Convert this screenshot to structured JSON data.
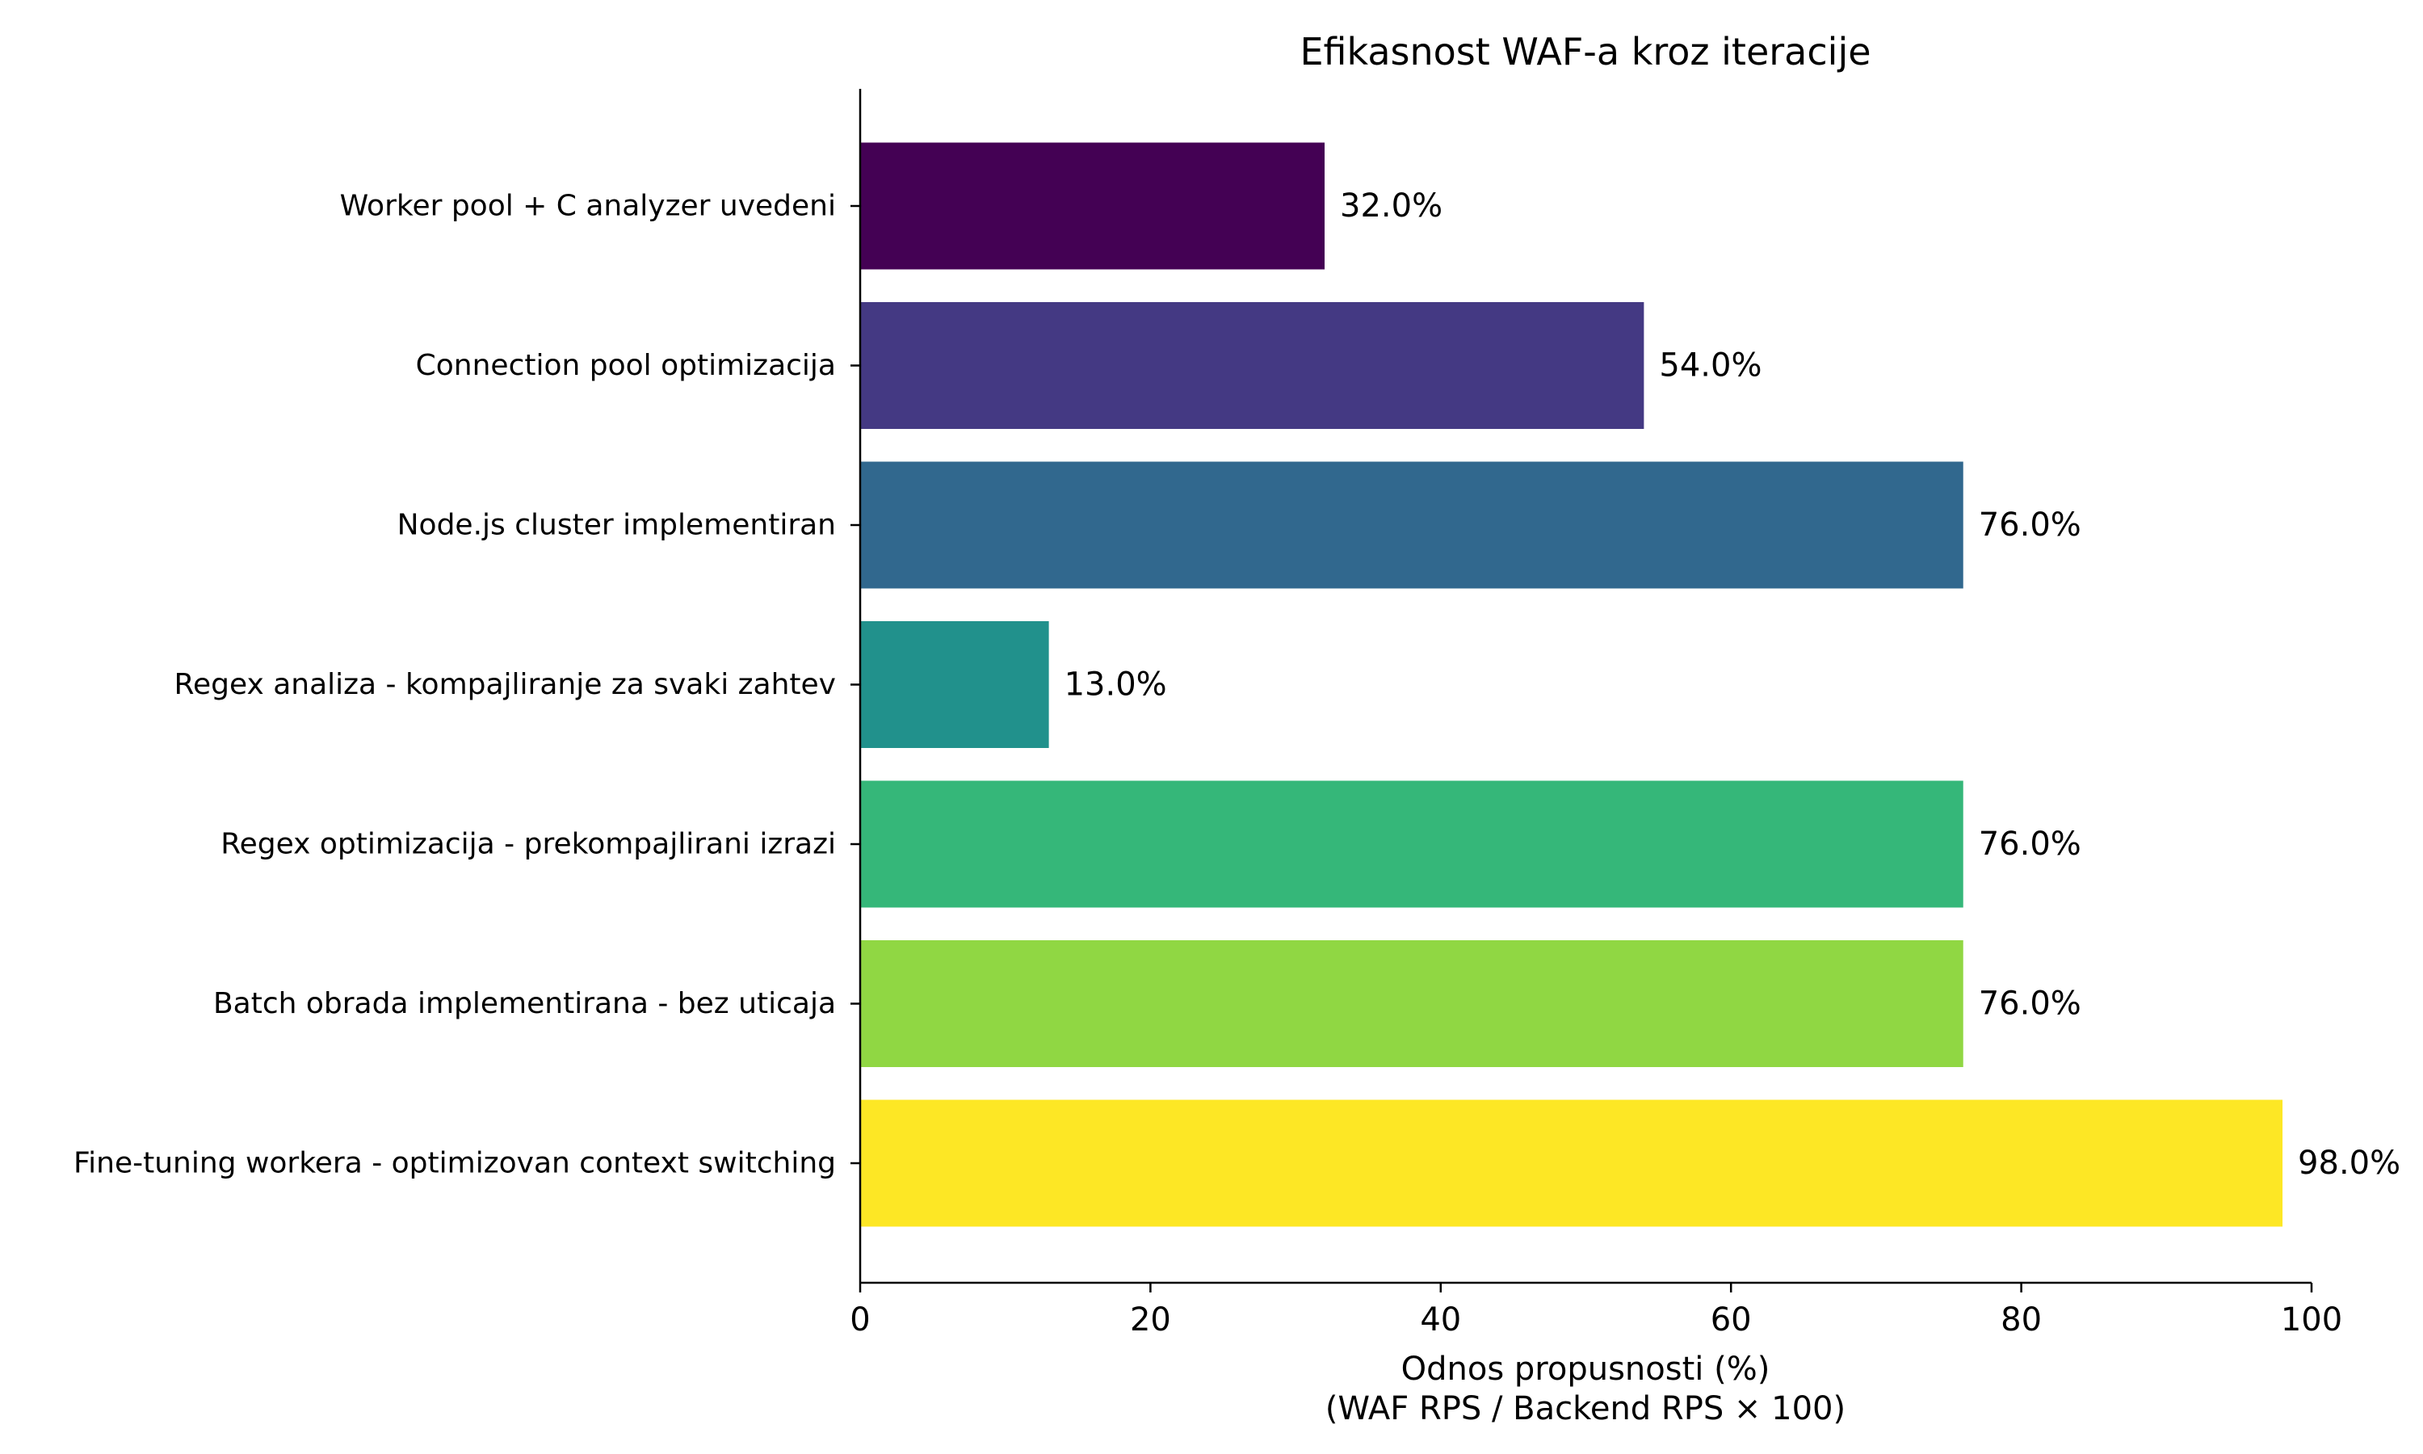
{
  "chart_data": {
    "type": "bar",
    "orientation": "horizontal",
    "title": "Efikasnost WAF-a kroz iteracije",
    "xlabel": "Odnos propusnosti (%)",
    "xlabel_line2": "(WAF RPS / Backend RPS × 100)",
    "ylabel": "",
    "xlim": [
      0,
      100
    ],
    "xticks": [
      0,
      20,
      40,
      60,
      80,
      100
    ],
    "grid": false,
    "categories": [
      "Worker pool + C analyzer uvedeni",
      "Connection pool optimizacija",
      "Node.js cluster implementiran",
      "Regex analiza - kompajliranje za svaki zahtev",
      "Regex optimizacija - prekompajlirani izrazi",
      "Batch obrada implementirana - bez uticaja",
      "Fine-tuning workera - optimizovan context switching"
    ],
    "values": [
      32.0,
      54.0,
      76.0,
      13.0,
      76.0,
      76.0,
      98.0
    ],
    "value_labels": [
      "32.0%",
      "54.0%",
      "76.0%",
      "13.0%",
      "76.0%",
      "76.0%",
      "98.0%"
    ],
    "colors": [
      "#440154",
      "#443983",
      "#31688e",
      "#21918c",
      "#35b779",
      "#90d743",
      "#fde725"
    ]
  }
}
